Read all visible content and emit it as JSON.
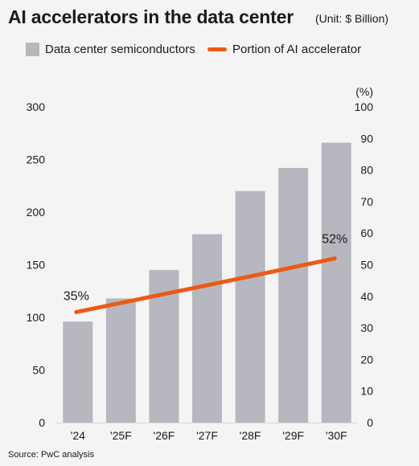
{
  "header": {
    "title": "AI accelerators in the data center",
    "unit": "(Unit: $ Billion)"
  },
  "legend": {
    "bar_label": "Data center semiconductors",
    "line_label": "Portion of AI accelerator"
  },
  "source": "Source: PwC analysis",
  "colors": {
    "bar": "#b7b8bf",
    "line": "#ea5b14",
    "background": "#f4f4f4"
  },
  "chart_data": {
    "type": "bar",
    "categories": [
      "'24",
      "'25F",
      "'26F",
      "'27F",
      "'28F",
      "'29F",
      "'30F"
    ],
    "series": [
      {
        "name": "Data center semiconductors",
        "type": "bar",
        "axis": "left",
        "values": [
          96,
          118,
          145,
          179,
          220,
          242,
          266
        ]
      },
      {
        "name": "Portion of AI accelerator",
        "type": "line",
        "axis": "right",
        "values": [
          35,
          37.8,
          40.6,
          43.4,
          46.2,
          49.1,
          52
        ]
      }
    ],
    "data_labels": {
      "first": "35%",
      "last": "52%"
    },
    "left_axis": {
      "ylim": [
        0,
        300
      ],
      "ticks": [
        "0",
        "50",
        "100",
        "150",
        "200",
        "250",
        "300"
      ]
    },
    "right_axis": {
      "ylim": [
        0,
        100
      ],
      "label": "(%)",
      "ticks": [
        "0",
        "10",
        "20",
        "30",
        "40",
        "50",
        "60",
        "70",
        "80",
        "90",
        "100"
      ]
    },
    "grid": false,
    "legend_position": "top"
  }
}
